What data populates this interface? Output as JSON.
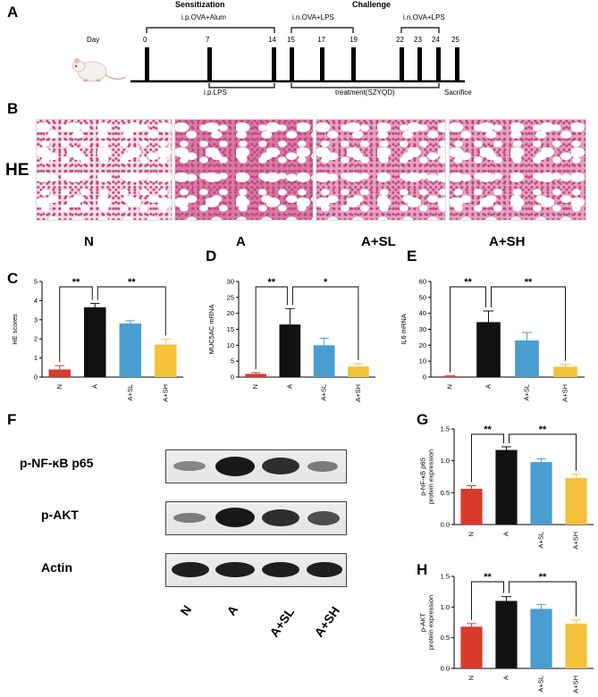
{
  "panels": {
    "A": "A",
    "B": "B",
    "C": "C",
    "D": "D",
    "E": "E",
    "F": "F",
    "G": "G",
    "H": "H"
  },
  "timeline": {
    "sensitization": "Sensitization",
    "challenge": "Challenge",
    "ip_ova_alum": "i.p.OVA+Alum",
    "in_ova_lps_1": "i.n.OVA+LPS",
    "in_ova_lps_2": "i.n.OVA+LPS",
    "day_label": "Day",
    "days": [
      "0",
      "7",
      "14",
      "15",
      "17",
      "19",
      "22",
      "23",
      "24",
      "25"
    ],
    "ip_lps": "i.p.LPS",
    "treatment": "treatment(SZYQD)",
    "sacrifice": "Sacrifice"
  },
  "histology": {
    "stain": "HE",
    "groups": [
      "N",
      "A",
      "A+SL",
      "A+SH"
    ]
  },
  "western": {
    "rows": [
      "p-NF-κB p65",
      "p-AKT",
      "Actin"
    ],
    "lanes": [
      "N",
      "A",
      "A+SL",
      "A+SH"
    ]
  },
  "colors": {
    "N": "#d93a2b",
    "A": "#111111",
    "A+SL": "#4a9dd0",
    "A+SH": "#f3c13a"
  },
  "chart_data": [
    {
      "panel": "C",
      "type": "bar",
      "ylabel": "HE scores",
      "categories": [
        "N",
        "A",
        "A+SL",
        "A+SH"
      ],
      "values": [
        0.4,
        3.65,
        2.8,
        1.7
      ],
      "errors": [
        0.2,
        0.2,
        0.15,
        0.28
      ],
      "ylim": [
        0,
        5
      ],
      "yticks": [
        "0",
        "1",
        "2",
        "3",
        "4",
        "5"
      ],
      "significance": [
        {
          "from": 0,
          "to": 1,
          "label": "**"
        },
        {
          "from": 1,
          "to": 3,
          "label": "**"
        }
      ]
    },
    {
      "panel": "D",
      "type": "bar",
      "ylabel": "MUC5AC mRNA",
      "categories": [
        "N",
        "A",
        "A+SL",
        "A+SH"
      ],
      "values": [
        1.0,
        16.5,
        10.0,
        3.3
      ],
      "errors": [
        0.4,
        5.0,
        2.2,
        0.9
      ],
      "ylim": [
        0,
        30
      ],
      "yticks": [
        "0",
        "5",
        "10",
        "15",
        "20",
        "25",
        "30"
      ],
      "significance": [
        {
          "from": 0,
          "to": 1,
          "label": "**"
        },
        {
          "from": 1,
          "to": 3,
          "label": "*"
        }
      ]
    },
    {
      "panel": "E",
      "type": "bar",
      "ylabel": "IL6 mRNA",
      "categories": [
        "N",
        "A",
        "A+SL",
        "A+SH"
      ],
      "values": [
        0.5,
        34.5,
        23.0,
        6.5
      ],
      "errors": [
        0.3,
        7.0,
        5.0,
        1.5
      ],
      "ylim": [
        0,
        60
      ],
      "yticks": [
        "0",
        "10",
        "20",
        "30",
        "40",
        "50",
        "60"
      ],
      "significance": [
        {
          "from": 0,
          "to": 1,
          "label": "**"
        },
        {
          "from": 1,
          "to": 3,
          "label": "**"
        }
      ]
    },
    {
      "panel": "G",
      "type": "bar",
      "ylabel": "p-NF-κB p65 protein expression",
      "ylabel_lines": [
        "p-NF-κB p65",
        "protein expression"
      ],
      "categories": [
        "N",
        "A",
        "A+SL",
        "A+SH"
      ],
      "values": [
        0.56,
        1.17,
        0.98,
        0.73
      ],
      "errors": [
        0.05,
        0.05,
        0.05,
        0.06
      ],
      "ylim": [
        0,
        1.5
      ],
      "yticks": [
        "0.0",
        "0.5",
        "1.0",
        "1.5"
      ],
      "significance": [
        {
          "from": 0,
          "to": 1,
          "label": "**"
        },
        {
          "from": 1,
          "to": 3,
          "label": "**"
        }
      ]
    },
    {
      "panel": "H",
      "type": "bar",
      "ylabel": "p-AKT protein expression",
      "ylabel_lines": [
        "p-AKT",
        "protein expression"
      ],
      "categories": [
        "N",
        "A",
        "A+SL",
        "A+SH"
      ],
      "values": [
        0.68,
        1.1,
        0.97,
        0.73
      ],
      "errors": [
        0.05,
        0.07,
        0.07,
        0.06
      ],
      "ylim": [
        0,
        1.5
      ],
      "yticks": [
        "0.0",
        "0.5",
        "1.0",
        "1.5"
      ],
      "significance": [
        {
          "from": 0,
          "to": 1,
          "label": "**"
        },
        {
          "from": 1,
          "to": 3,
          "label": "**"
        }
      ]
    }
  ]
}
